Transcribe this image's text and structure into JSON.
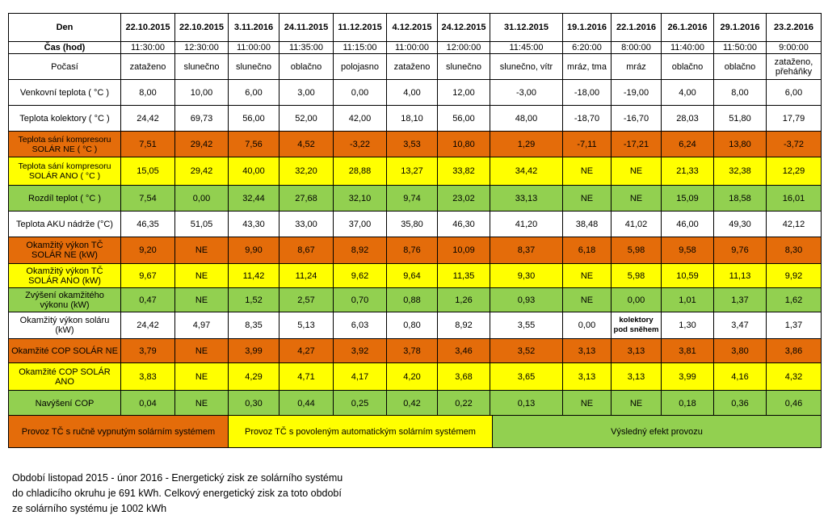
{
  "dates": [
    "22.10.2015",
    "22.10.2015",
    "3.11.2016",
    "24.11.2015",
    "11.12.2015",
    "4.12.2015",
    "24.12.2015",
    "31.12.2015",
    "19.1.2016",
    "22.1.2016",
    "26.1.2016",
    "29.1.2016",
    "23.2.2016"
  ],
  "rows": [
    {
      "label": "Čas (hod)",
      "values": [
        "11:30:00",
        "12:30:00",
        "11:00:00",
        "11:35:00",
        "11:15:00",
        "11:00:00",
        "12:00:00",
        "11:45:00",
        "6:20:00",
        "8:00:00",
        "11:40:00",
        "11:50:00",
        "9:00:00"
      ]
    },
    {
      "label": "Počasí",
      "values": [
        "zataženo",
        "slunečno",
        "slunečno",
        "oblačno",
        "polojasno",
        "zataženo",
        "slunečno",
        "slunečno, vítr",
        "mráz, tma",
        "mráz",
        "oblačno",
        "oblačno",
        "zataženo, přeháňky"
      ]
    },
    {
      "label": "Venkovní teplota ( °C )",
      "values": [
        "8,00",
        "10,00",
        "6,00",
        "3,00",
        "0,00",
        "4,00",
        "12,00",
        "-3,00",
        "-18,00",
        "-19,00",
        "4,00",
        "8,00",
        "6,00"
      ]
    },
    {
      "label": "Teplota kolektory  ( °C )",
      "values": [
        "24,42",
        "69,73",
        "56,00",
        "52,00",
        "42,00",
        "18,10",
        "56,00",
        "48,00",
        "-18,70",
        "-16,70",
        "28,03",
        "51,80",
        "17,79"
      ]
    },
    {
      "label": "Teplota sání kompresoru SOLÁR NE ( °C )",
      "values": [
        "7,51",
        "29,42",
        "7,56",
        "4,52",
        "-3,22",
        "3,53",
        "10,80",
        "1,29",
        "-7,11",
        "-17,21",
        "6,24",
        "13,80",
        "-3,72"
      ]
    },
    {
      "label": "Teplota sání kompresoru SOLÁR ANO ( °C )",
      "values": [
        "15,05",
        "29,42",
        "40,00",
        "32,20",
        "28,88",
        "13,27",
        "33,82",
        "34,42",
        "NE",
        "NE",
        "21,33",
        "32,38",
        "12,29"
      ]
    },
    {
      "label": "Rozdíl teplot ( °C )",
      "values": [
        "7,54",
        "0,00",
        "32,44",
        "27,68",
        "32,10",
        "9,74",
        "23,02",
        "33,13",
        "NE",
        "NE",
        "15,09",
        "18,58",
        "16,01"
      ]
    },
    {
      "label": "Teplota AKU nádrže (°C)",
      "values": [
        "46,35",
        "51,05",
        "43,30",
        "33,00",
        "37,00",
        "35,80",
        "46,30",
        "41,20",
        "38,48",
        "41,02",
        "46,00",
        "49,30",
        "42,12"
      ]
    },
    {
      "label": "Okamžitý výkon TČ SOLÁR NE  (kW)",
      "values": [
        "9,20",
        "NE",
        "9,90",
        "8,67",
        "8,92",
        "8,76",
        "10,09",
        "8,37",
        "6,18",
        "5,98",
        "9,58",
        "9,76",
        "8,30"
      ]
    },
    {
      "label": "Okamžitý výkon TČ SOLÁR ANO (kW)",
      "values": [
        "9,67",
        "NE",
        "11,42",
        "11,24",
        "9,62",
        "9,64",
        "11,35",
        "9,30",
        "NE",
        "5,98",
        "10,59",
        "11,13",
        "9,92"
      ]
    },
    {
      "label": "Zvýšení okamžitého výkonu (kW)",
      "values": [
        "0,47",
        "NE",
        "1,52",
        "2,57",
        "0,70",
        "0,88",
        "1,26",
        "0,93",
        "NE",
        "0,00",
        "1,01",
        "1,37",
        "1,62"
      ]
    },
    {
      "label": "Okamžitý výkon soláru (kW)",
      "values": [
        "24,42",
        "4,97",
        "8,35",
        "5,13",
        "6,03",
        "0,80",
        "8,92",
        "3,55",
        "0,00",
        "kolektory pod sněhem",
        "1,30",
        "3,47",
        "1,37"
      ]
    },
    {
      "label": "Okamžité COP    SOLÁR NE",
      "values": [
        "3,79",
        "NE",
        "3,99",
        "4,27",
        "3,92",
        "3,78",
        "3,46",
        "3,52",
        "3,13",
        "3,13",
        "3,81",
        "3,80",
        "3,86"
      ]
    },
    {
      "label": "Okamžité COP    SOLÁR ANO",
      "values": [
        "3,83",
        "NE",
        "4,29",
        "4,71",
        "4,17",
        "4,20",
        "3,68",
        "3,65",
        "3,13",
        "3,13",
        "3,99",
        "4,16",
        "4,32"
      ]
    },
    {
      "label": "Navýšení COP",
      "values": [
        "0,04",
        "NE",
        "0,30",
        "0,44",
        "0,25",
        "0,42",
        "0,22",
        "0,13",
        "NE",
        "NE",
        "0,18",
        "0,36",
        "0,46"
      ]
    }
  ],
  "header_label": "Den",
  "legend": {
    "off": "Provoz TČ s ručně vypnutým solárním systémem",
    "auto": "Provoz TČ s povoleným automatickým solárním systémem",
    "result": "Výsledný efekt provozu"
  },
  "colors": {
    "orange": "#E46C0A",
    "yellow": "#FFFF00",
    "green": "#92D050"
  },
  "note": [
    "Období listopad 2015 - únor 2016 - Energetický zisk ze solárního systému",
    "do chladicího okruhu je  691 kWh. Celkový energetický zisk za toto období",
    "ze solárního systému je 1002 kWh"
  ]
}
